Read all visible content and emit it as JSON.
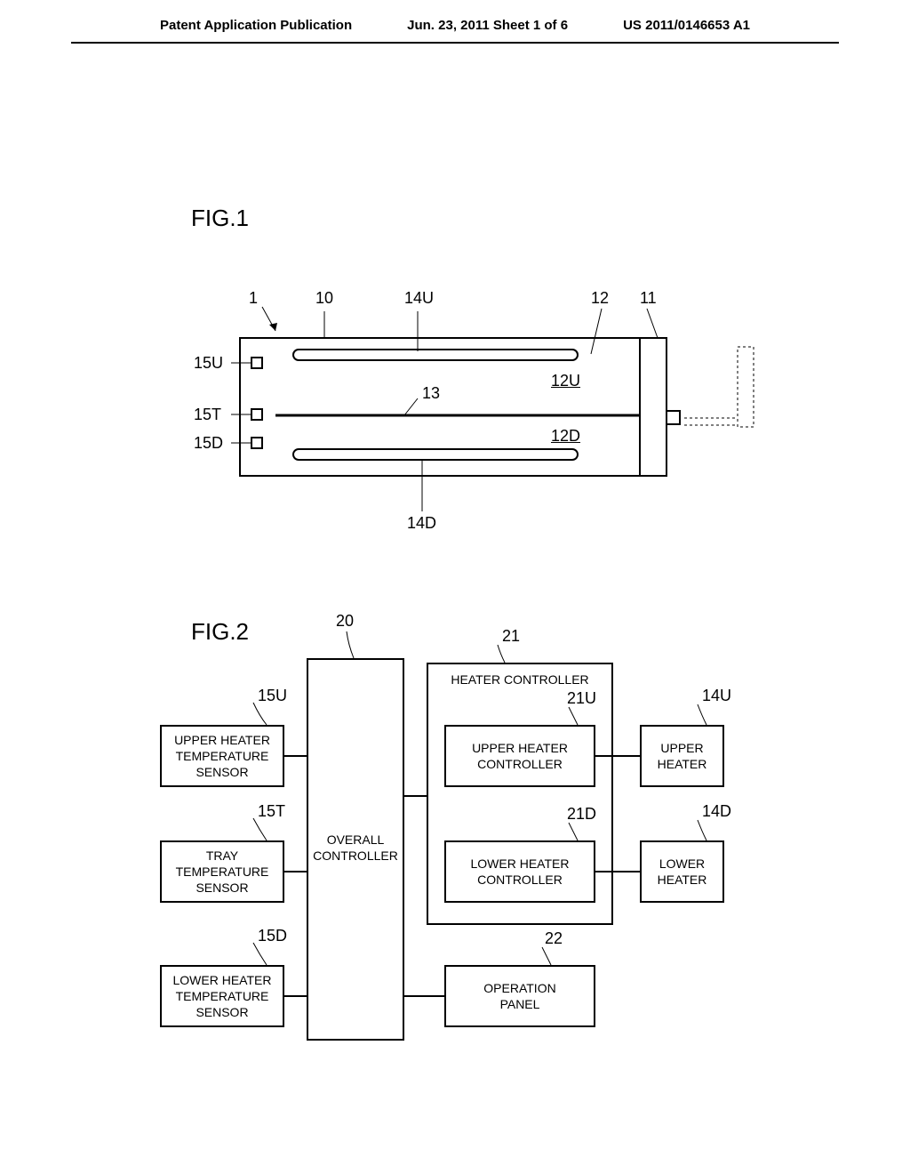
{
  "header": {
    "left": "Patent Application Publication",
    "center": "Jun. 23, 2011  Sheet 1 of 6",
    "right": "US 2011/0146653 A1"
  },
  "fig1": {
    "label": "FIG.1",
    "refs": {
      "r1": "1",
      "r10": "10",
      "r14U": "14U",
      "r12": "12",
      "r11": "11",
      "r15U": "15U",
      "r12U": "12U",
      "r15T": "15T",
      "r13": "13",
      "r12D": "12D",
      "r15D": "15D",
      "r14D": "14D"
    }
  },
  "fig2": {
    "label": "FIG.2",
    "refs": {
      "r20": "20",
      "r21": "21",
      "r15U": "15U",
      "r21U": "21U",
      "r14U": "14U",
      "r15T": "15T",
      "r21D": "21D",
      "r14D": "14D",
      "r15D": "15D",
      "r22": "22"
    },
    "blocks": {
      "upperHeaterTempSensor": "UPPER HEATER\nTEMPERATURE\nSENSOR",
      "trayTempSensor": "TRAY\nTEMPERATURE\nSENSOR",
      "lowerHeaterTempSensor": "LOWER HEATER\nTEMPERATURE\nSENSOR",
      "overallController": "OVERALL\nCONTROLLER",
      "heaterController": "HEATER CONTROLLER",
      "upperHeaterController": "UPPER HEATER\nCONTROLLER",
      "lowerHeaterController": "LOWER HEATER\nCONTROLLER",
      "operationPanel": "OPERATION\nPANEL",
      "upperHeater": "UPPER\nHEATER",
      "lowerHeater": "LOWER\nHEATER"
    }
  }
}
